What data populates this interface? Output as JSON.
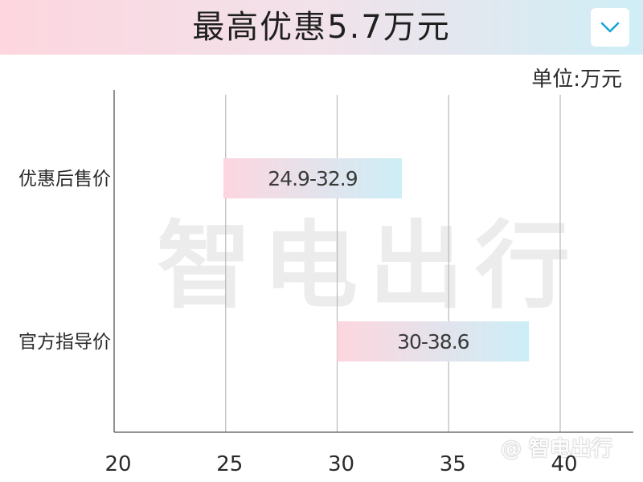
{
  "header": {
    "title": "最高优惠5.7万元",
    "menu_icon": "chevron-down-icon"
  },
  "unit_label": "单位:万元",
  "watermark": {
    "big_text": "智电出行",
    "small_text": "@ 智电出行"
  },
  "colors": {
    "bar_start": "#fdd6df",
    "bar_end": "#cdeef7",
    "grid": "#b9b9b9",
    "chevron": "#1aa6d6"
  },
  "chart_data": {
    "type": "bar",
    "orientation": "horizontal-range",
    "title": "最高优惠5.7万元",
    "xlabel": "",
    "ylabel": "",
    "unit": "单位:万元",
    "categories": [
      "优惠后售价",
      "官方指导价"
    ],
    "ranges": [
      {
        "category": "优惠后售价",
        "low": 24.9,
        "high": 32.9,
        "label": "24.9-32.9"
      },
      {
        "category": "官方指导价",
        "low": 30,
        "high": 38.6,
        "label": "30-38.6"
      }
    ],
    "xlim": [
      20,
      40
    ],
    "xticks": [
      20,
      25,
      30,
      35,
      40
    ],
    "grid": true,
    "legend": "none"
  }
}
